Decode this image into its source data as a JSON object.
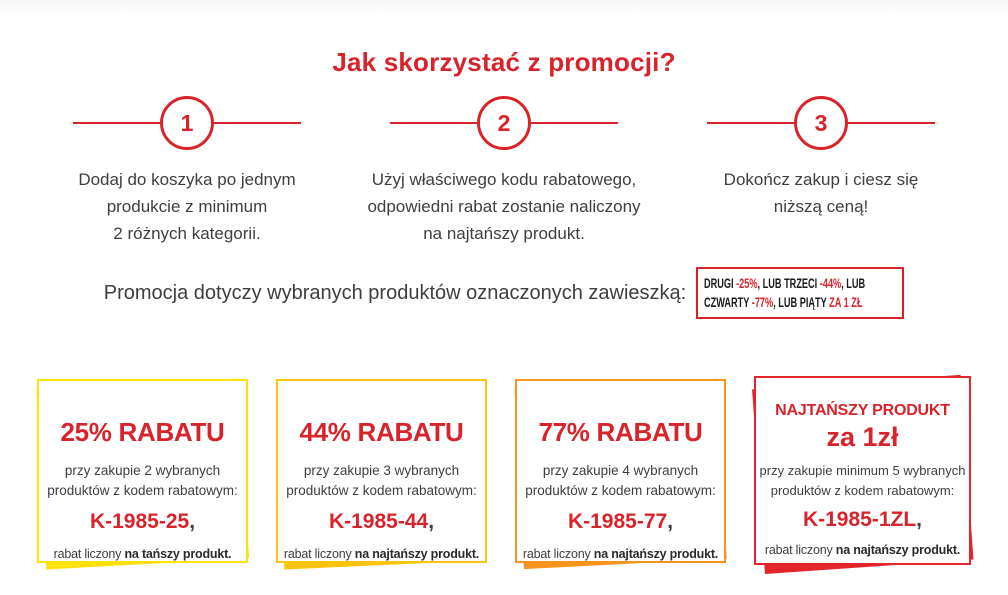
{
  "page": {
    "title": "Jak skorzystać z promocji?"
  },
  "steps": [
    {
      "number": "1",
      "lines": [
        "Dodaj do koszyka po jednym",
        "produkcie z minimum",
        "2 różnych kategorii."
      ]
    },
    {
      "number": "2",
      "lines": [
        "Użyj właściwego kodu rabatowego,",
        "odpowiedni rabat zostanie naliczony",
        "na najtańszy produkt."
      ]
    },
    {
      "number": "3",
      "lines": [
        "Dokończ zakup i ciesz się",
        "niższą ceną!"
      ]
    }
  ],
  "promo": {
    "sentence": "Promocja dotyczy wybranych produktów oznaczonych zawieszką:",
    "badge": {
      "line1": {
        "t1": "DRUGI ",
        "r1": "-25%",
        "t2": ", LUB TRZECI ",
        "r2": "-44%",
        "t3": ", LUB"
      },
      "line2": {
        "t1": "CZWARTY ",
        "r1": "-77%",
        "t2": ", LUB PIĄTY ",
        "r2": "ZA 1 ZŁ"
      }
    }
  },
  "cards": [
    {
      "heading": "25% RABATU",
      "body_line1": "przy zakupie 2 wybranych",
      "body_line2": "produktów z kodem rabatowym:",
      "code": "K-1985-25",
      "code_suffix": ",",
      "note_text": "rabat liczony ",
      "note_bold": "na tańszy produkt.",
      "accent": "#ffe10a"
    },
    {
      "heading": "44% RABATU",
      "body_line1": "przy zakupie 3 wybranych",
      "body_line2": "produktów z kodem rabatowym:",
      "code": "K-1985-44",
      "code_suffix": ",",
      "note_text": "rabat liczony ",
      "note_bold": "na najtańszy produkt.",
      "accent": "#fdc40f"
    },
    {
      "heading": "77% RABATU",
      "body_line1": "przy zakupie 4 wybranych",
      "body_line2": "produktów z kodem rabatowym:",
      "code": "K-1985-77",
      "code_suffix": ",",
      "note_text": "rabat liczony ",
      "note_bold": "na najtańszy produkt.",
      "accent": "#f6941e"
    },
    {
      "heading_small": "NAJTAŃSZY PRODUKT",
      "heading_big": "za 1zł",
      "body_line1": "przy zakupie minimum 5 wybranych",
      "body_line2": "produktów z kodem rabatowym:",
      "code": "K-1985-1ZL",
      "code_suffix": ",",
      "note_text": "rabat liczony ",
      "note_bold": "na najtańszy produkt.",
      "accent": "#e2242b"
    }
  ],
  "colors": {
    "accent_red": "#d8232a",
    "text_dark": "#3e3d40",
    "badge_text": "#1a1a1a"
  }
}
